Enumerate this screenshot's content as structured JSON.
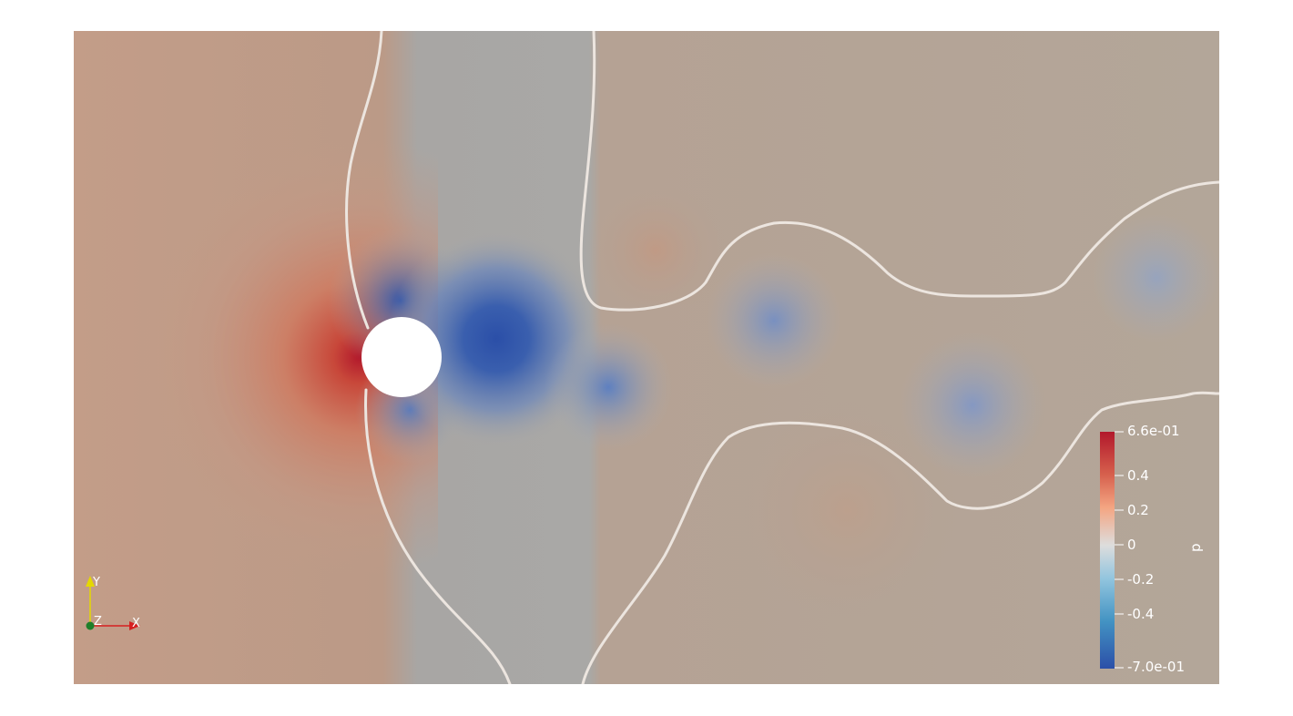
{
  "view": {
    "field_name": "p",
    "colorbar": {
      "max_label": "6.6e-01",
      "min_label": "-7.0e-01",
      "ticks": [
        "0.4",
        "0.2",
        "0",
        "-0.2",
        "-0.4"
      ],
      "colors": {
        "max": "#b2182b",
        "high": "#d6604d",
        "mid_high": "#f4a582",
        "neutral": "#dddddd",
        "mid_low": "#92c5de",
        "low": "#4393c3",
        "min": "#2b4fa8"
      }
    },
    "axes": {
      "x_label": "X",
      "y_label": "Y",
      "z_label": "Z"
    },
    "contour_line_color": "#ece5df"
  }
}
